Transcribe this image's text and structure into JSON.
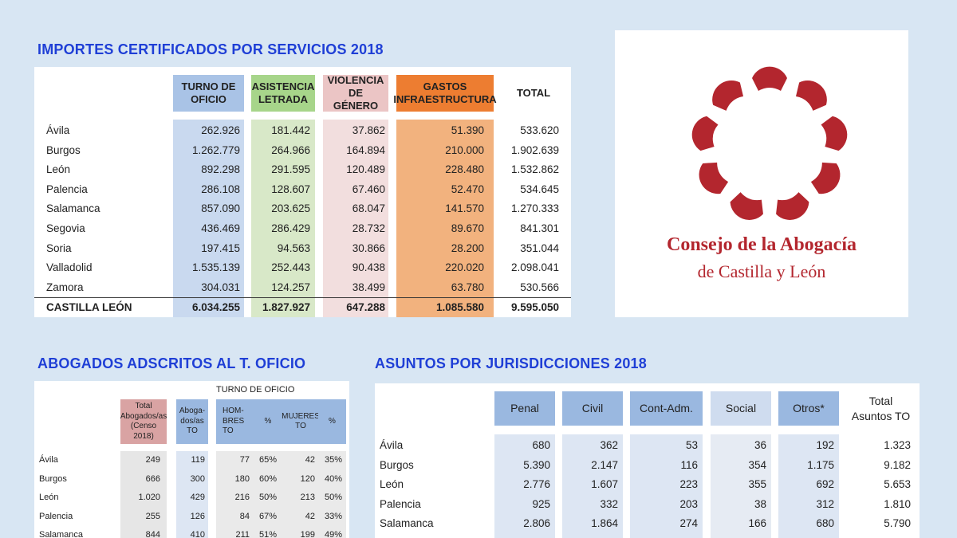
{
  "table1": {
    "title": "IMPORTES CERTIFICADOS POR SERVICIOS 2018",
    "headers": [
      "TURNO DE\nOFICIO",
      "ASISTENCIA\nLETRADA",
      "VIOLENCIA\nDE GÉNERO",
      "GASTOS\nINFRAESTRUCTURA",
      "TOTAL"
    ],
    "colors": {
      "turno": "#c9d9ef",
      "asistencia": "#d8e8c8",
      "violencia": "#f2dede",
      "gastos": "#f2b27e",
      "turno_hdr": "#a9c3e6",
      "asistencia_hdr": "#a7d58a",
      "violencia_hdr": "#ebc5c5",
      "gastos_hdr": "#ed7d31"
    },
    "rows": [
      {
        "name": "Ávila",
        "values": [
          "262.926",
          "181.442",
          "37.862",
          "51.390",
          "533.620"
        ]
      },
      {
        "name": "Burgos",
        "values": [
          "1.262.779",
          "264.966",
          "164.894",
          "210.000",
          "1.902.639"
        ]
      },
      {
        "name": "León",
        "values": [
          "892.298",
          "291.595",
          "120.489",
          "228.480",
          "1.532.862"
        ]
      },
      {
        "name": "Palencia",
        "values": [
          "286.108",
          "128.607",
          "67.460",
          "52.470",
          "534.645"
        ]
      },
      {
        "name": "Salamanca",
        "values": [
          "857.090",
          "203.625",
          "68.047",
          "141.570",
          "1.270.333"
        ]
      },
      {
        "name": "Segovia",
        "values": [
          "436.469",
          "286.429",
          "28.732",
          "89.670",
          "841.301"
        ]
      },
      {
        "name": "Soria",
        "values": [
          "197.415",
          "94.563",
          "30.866",
          "28.200",
          "351.044"
        ]
      },
      {
        "name": "Valladolid",
        "values": [
          "1.535.139",
          "252.443",
          "90.438",
          "220.020",
          "2.098.041"
        ]
      },
      {
        "name": "Zamora",
        "values": [
          "304.031",
          "124.257",
          "38.499",
          "63.780",
          "530.566"
        ]
      }
    ],
    "total": {
      "name": "CASTILLA LEÓN",
      "values": [
        "6.034.255",
        "1.827.927",
        "647.288",
        "1.085.580",
        "9.595.050"
      ]
    }
  },
  "logo": {
    "line1": "Consejo de la Abogacía",
    "line2": "de Castilla y León",
    "color": "#b3262e"
  },
  "table2": {
    "title": "ABOGADOS ADSCRITOS AL T. OFICIO",
    "group_header": "TURNO DE OFICIO",
    "headers": [
      "Total\nAbogados/as\n(Censo 2018)",
      "Aboga-\ndos/as\nTO",
      "HOM-\nBRES\nTO",
      "%",
      "MUJERES\nTO",
      "%"
    ],
    "rows": [
      {
        "name": "Ávila",
        "values": [
          "249",
          "119",
          "77",
          "65%",
          "42",
          "35%"
        ]
      },
      {
        "name": "Burgos",
        "values": [
          "666",
          "300",
          "180",
          "60%",
          "120",
          "40%"
        ]
      },
      {
        "name": "León",
        "values": [
          "1.020",
          "429",
          "216",
          "50%",
          "213",
          "50%"
        ]
      },
      {
        "name": "Palencia",
        "values": [
          "255",
          "126",
          "84",
          "67%",
          "42",
          "33%"
        ]
      },
      {
        "name": "Salamanca",
        "values": [
          "844",
          "410",
          "211",
          "51%",
          "199",
          "49%"
        ]
      }
    ]
  },
  "table3": {
    "title": "ASUNTOS POR JURISDICCIONES 2018",
    "headers": [
      "Penal",
      "Civil",
      "Cont-Adm.",
      "Social",
      "Otros*",
      "Total\nAsuntos TO"
    ],
    "rows": [
      {
        "name": "Ávila",
        "values": [
          "680",
          "362",
          "53",
          "36",
          "192",
          "1.323"
        ]
      },
      {
        "name": "Burgos",
        "values": [
          "5.390",
          "2.147",
          "116",
          "354",
          "1.175",
          "9.182"
        ]
      },
      {
        "name": "León",
        "values": [
          "2.776",
          "1.607",
          "223",
          "355",
          "692",
          "5.653"
        ]
      },
      {
        "name": "Palencia",
        "values": [
          "925",
          "332",
          "203",
          "38",
          "312",
          "1.810"
        ]
      },
      {
        "name": "Salamanca",
        "values": [
          "2.806",
          "1.864",
          "274",
          "166",
          "680",
          "5.790"
        ]
      }
    ]
  }
}
